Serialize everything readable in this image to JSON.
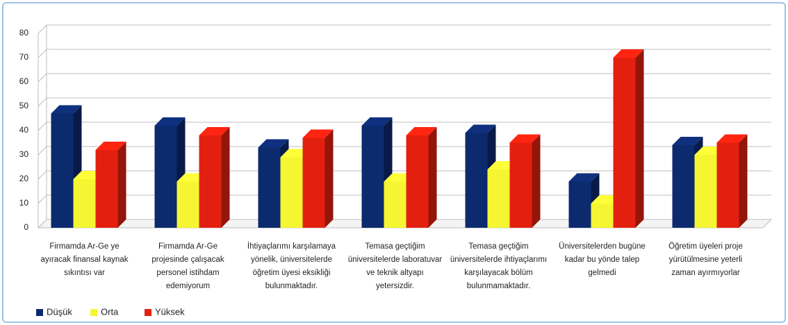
{
  "chart_data": {
    "type": "bar3d",
    "categories": [
      "Firmamda Ar-Ge ye ayıracak finansal kaynak sıkıntısı var",
      "Firmamda Ar-Ge projesinde çalışacak personel istihdam edemiyorum",
      "İhtiyaçlarımı karşılamaya yönelik, üniversitelerde öğretim üyesi eksikliği bulunmaktadır.",
      "Temasa geçtiğim üniversitelerde laboratuvar ve teknik altyapı yetersizdir.",
      "Temasa geçtiğim üniversitelerde ihtiyaçlarımı karşılayacak bölüm bulunmamaktadır.",
      "Üniversitelerden bugüne kadar bu yönde talep gelmedi",
      "Öğretim üyeleri proje yürütülmesine yeterli zaman ayırmıyorlar"
    ],
    "series": [
      {
        "name": "Düşük",
        "color": "#0c2a6e",
        "values": [
          47,
          42,
          33,
          42,
          39,
          19,
          34
        ]
      },
      {
        "name": "Orta",
        "color": "#f5f532",
        "values": [
          20,
          19,
          29,
          19,
          24,
          10,
          30
        ]
      },
      {
        "name": "Yüksek",
        "color": "#e3200f",
        "values": [
          32,
          38,
          37,
          38,
          35,
          70,
          35
        ]
      }
    ],
    "ylim": [
      0,
      80
    ],
    "yticks": [
      0,
      10,
      20,
      30,
      40,
      50,
      60,
      70,
      80
    ],
    "grid": true,
    "legend": "bottom-left"
  }
}
